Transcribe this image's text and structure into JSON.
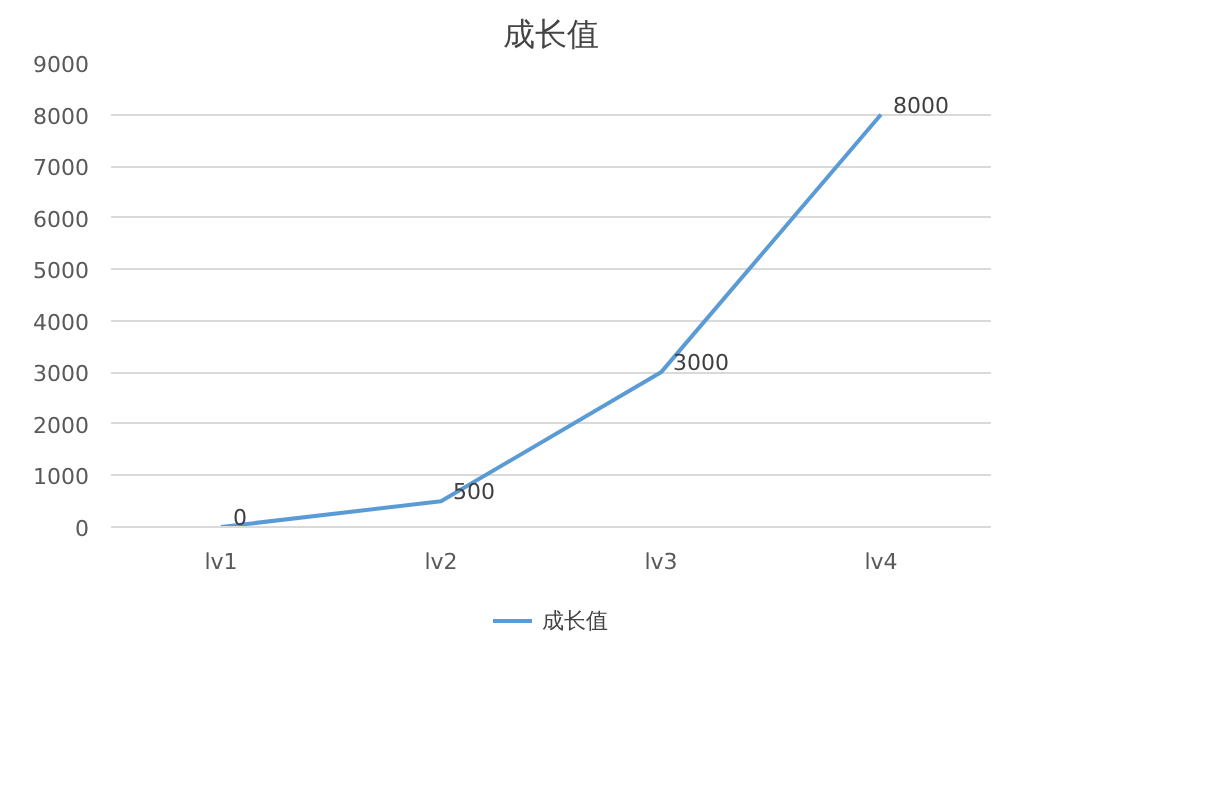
{
  "chart_data": {
    "type": "line",
    "title": "成长值",
    "categories": [
      "lv1",
      "lv2",
      "lv3",
      "lv4"
    ],
    "series": [
      {
        "name": "成长值",
        "color": "#5b9bd5",
        "values": [
          0,
          500,
          3000,
          8000
        ]
      }
    ],
    "ylim": [
      0,
      9000
    ],
    "yticks": [
      0,
      1000,
      2000,
      3000,
      4000,
      5000,
      6000,
      7000,
      8000,
      9000
    ],
    "grid": "y",
    "legend": "bottom",
    "data_labels": true,
    "marker": "none",
    "line_style": "solid"
  }
}
